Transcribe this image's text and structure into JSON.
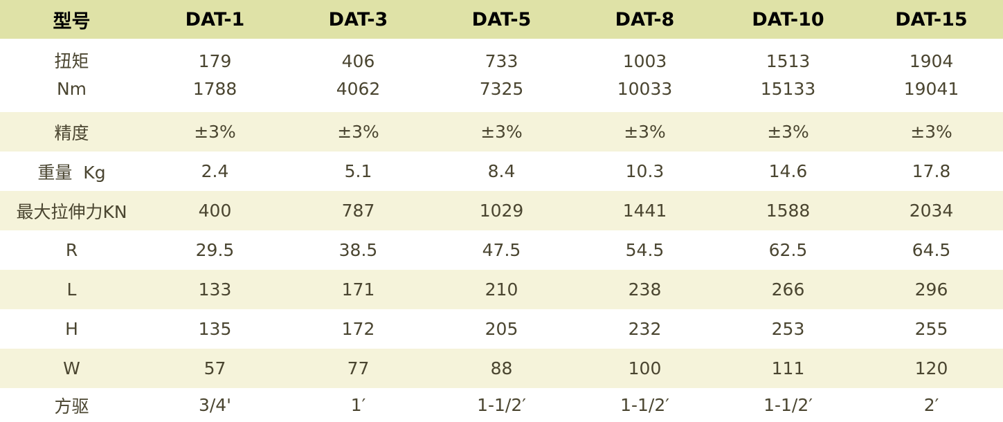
{
  "header": {
    "label": "型号",
    "models": [
      "DAT-1",
      "DAT-3",
      "DAT-5",
      "DAT-8",
      "DAT-10",
      "DAT-15"
    ]
  },
  "torque": {
    "label_line1": "扭矩",
    "label_line2": "Nm",
    "min": [
      "179",
      "406",
      "733",
      "1003",
      "1513",
      "1904"
    ],
    "max": [
      "1788",
      "4062",
      "7325",
      "10033",
      "15133",
      "19041"
    ]
  },
  "rows": [
    {
      "label": "精度",
      "values": [
        "±3%",
        "±3%",
        "±3%",
        "±3%",
        "±3%",
        "±3%"
      ]
    },
    {
      "label": "重量  Kg",
      "values": [
        "2.4",
        "5.1",
        "8.4",
        "10.3",
        "14.6",
        "17.8"
      ]
    },
    {
      "label": "最大拉伸力KN",
      "values": [
        "400",
        "787",
        "1029",
        "1441",
        "1588",
        "2034"
      ]
    },
    {
      "label": "R",
      "values": [
        "29.5",
        "38.5",
        "47.5",
        "54.5",
        "62.5",
        "64.5"
      ]
    },
    {
      "label": "L",
      "values": [
        "133",
        "171",
        "210",
        "238",
        "266",
        "296"
      ]
    },
    {
      "label": "H",
      "values": [
        "135",
        "172",
        "205",
        "232",
        "253",
        "255"
      ]
    },
    {
      "label": "W",
      "values": [
        "57",
        "77",
        "88",
        "100",
        "111",
        "120"
      ]
    },
    {
      "label": "方驱",
      "values": [
        "3/4'",
        "1′",
        "1-1/2′",
        "1-1/2′",
        "1-1/2′",
        "2′"
      ]
    }
  ],
  "colors": {
    "header_bg": "#dfe2a7",
    "alt_row_bg": "#f5f3da",
    "text": "#4a4530"
  }
}
